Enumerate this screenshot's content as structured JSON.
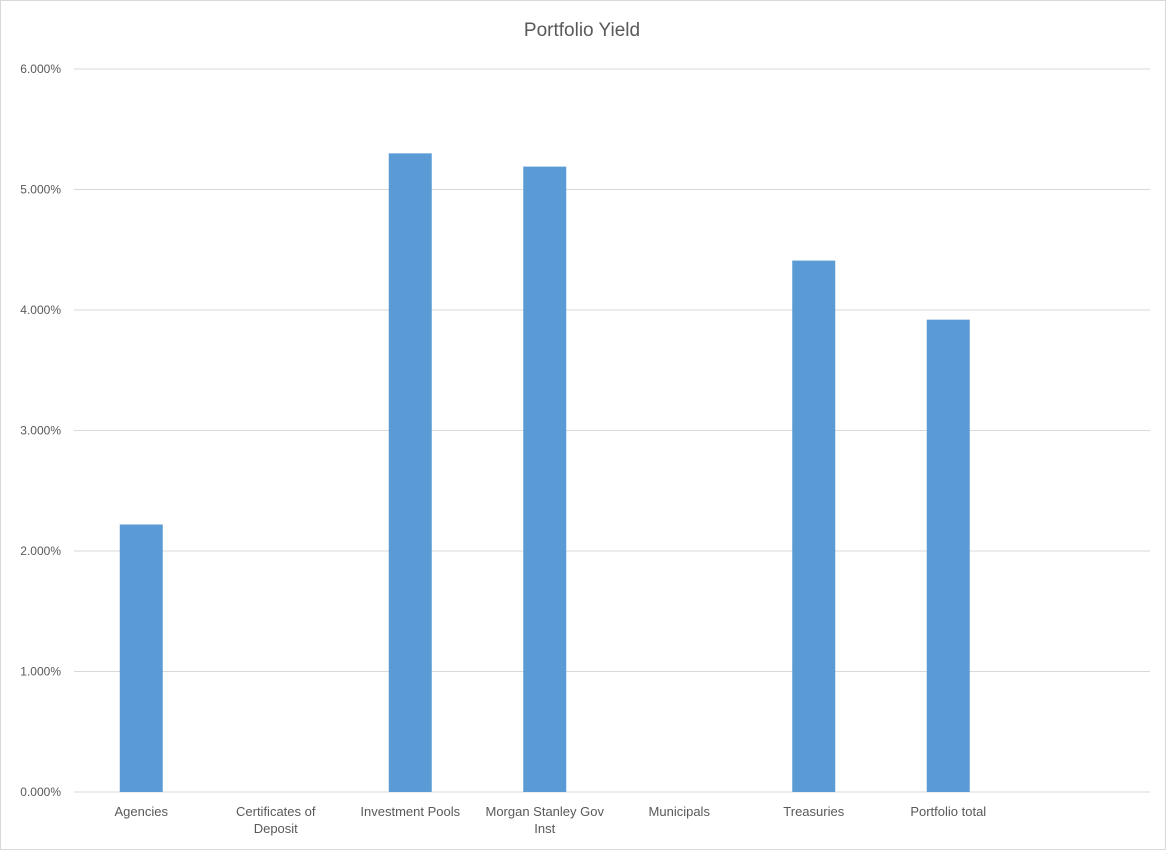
{
  "chart_data": {
    "type": "bar",
    "title": "Portfolio Yield",
    "xlabel": "",
    "ylabel": "",
    "ylim": [
      0,
      6
    ],
    "yticks": [
      "0.000%",
      "1.000%",
      "2.000%",
      "3.000%",
      "4.000%",
      "5.000%",
      "6.000%"
    ],
    "grid": true,
    "categories": [
      [
        "Agencies"
      ],
      [
        "Certificates of",
        "Deposit"
      ],
      [
        "Investment Pools"
      ],
      [
        "Morgan Stanley Gov",
        "Inst"
      ],
      [
        "Municipals"
      ],
      [
        "Treasuries"
      ],
      [
        "Portfolio total"
      ],
      [
        ""
      ]
    ],
    "values": [
      2.22,
      0,
      5.3,
      5.19,
      0,
      4.41,
      3.92,
      0
    ],
    "bar_color": "#5b9bd5",
    "grid_color": "#d9d9d9"
  }
}
